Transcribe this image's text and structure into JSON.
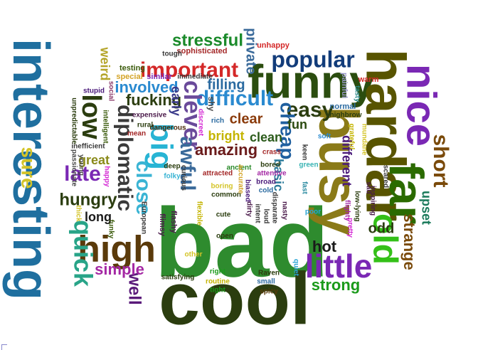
{
  "words": [
    {
      "text": "bad",
      "color": "#2e8b2e"
    },
    {
      "text": "cool",
      "color": "#2b3d0f"
    },
    {
      "text": "interesting",
      "color": "#1f6f9f"
    },
    {
      "text": "funny",
      "color": "#2b4d0f"
    },
    {
      "text": "hardar",
      "color": "#585400"
    },
    {
      "text": "far",
      "color": "#2b6b00"
    },
    {
      "text": "busy",
      "color": "#8a7a18"
    },
    {
      "text": "nice",
      "color": "#7a28b4"
    },
    {
      "text": "high",
      "color": "#5a3a0a"
    },
    {
      "text": "little",
      "color": "#7a28b4"
    },
    {
      "text": "old",
      "color": "#34c018"
    },
    {
      "text": "big",
      "color": "#28b4d4"
    },
    {
      "text": "popular",
      "color": "#123c7a"
    },
    {
      "text": "important",
      "color": "#d42828"
    },
    {
      "text": "difficult",
      "color": "#2a8ad0"
    },
    {
      "text": "easy",
      "color": "#2b3d0f"
    },
    {
      "text": "clever",
      "color": "#6a4a9a"
    },
    {
      "text": "stressful",
      "color": "#1a8a2a"
    },
    {
      "text": "short",
      "color": "#7a4a0a"
    },
    {
      "text": "low",
      "color": "#2b3d0f"
    },
    {
      "text": "quick",
      "color": "#28a488"
    },
    {
      "text": "sure",
      "color": "#d4c428"
    },
    {
      "text": "close",
      "color": "#3ab4d4"
    },
    {
      "text": "awful",
      "color": "#3a6a9a"
    },
    {
      "text": "diplomatic",
      "color": "#3a3a3a"
    },
    {
      "text": "late",
      "color": "#7a28b4"
    },
    {
      "text": "hungry",
      "color": "#2b3d0f"
    },
    {
      "text": "cheap",
      "color": "#1f5f9f"
    },
    {
      "text": "strange",
      "color": "#7a4a0a"
    },
    {
      "text": "upset",
      "color": "#1a7a5a"
    },
    {
      "text": "amazing",
      "color": "#6a1a1a"
    },
    {
      "text": "fucking",
      "color": "#2b3d0f"
    },
    {
      "text": "involved",
      "color": "#2a8ad0"
    },
    {
      "text": "well",
      "color": "#5a1a7a"
    },
    {
      "text": "simple",
      "color": "#a428a4"
    },
    {
      "text": "strong",
      "color": "#1a9a1a"
    },
    {
      "text": "hot",
      "color": "#1a1a1a"
    },
    {
      "text": "odd",
      "color": "#2b3d0f"
    },
    {
      "text": "private",
      "color": "#3a6a9a"
    },
    {
      "text": "weird",
      "color": "#b4a428"
    },
    {
      "text": "filling",
      "color": "#2a6aa0"
    },
    {
      "text": "clear",
      "color": "#8a3a0a"
    },
    {
      "text": "bright",
      "color": "#c4b400"
    },
    {
      "text": "fun",
      "color": "#2a4a0f"
    },
    {
      "text": "clean",
      "color": "#2a5a1a"
    },
    {
      "text": "great",
      "color": "#8a8a1a"
    },
    {
      "text": "long",
      "color": "#1a1a1a"
    },
    {
      "text": "basic",
      "color": "#2a7a9a"
    },
    {
      "text": "different",
      "color": "#4a1a7a"
    },
    {
      "text": "early",
      "color": "#3a3a8a"
    },
    {
      "text": "shy",
      "color": "#4a4a4a"
    },
    {
      "text": "unhappy",
      "color": "#d42828"
    },
    {
      "text": "sophisticated",
      "color": "#a42828"
    },
    {
      "text": "tough",
      "color": "#3a3a3a"
    },
    {
      "text": "testing",
      "color": "#3a5a0a"
    },
    {
      "text": "special",
      "color": "#d4a428"
    },
    {
      "text": "similar",
      "color": "#7a28b4"
    },
    {
      "text": "immediate",
      "color": "#3a3a3a"
    },
    {
      "text": "painful",
      "color": "#9a9aca"
    },
    {
      "text": "warm",
      "color": "#d42828"
    },
    {
      "text": "tasty",
      "color": "#2a8a8a"
    },
    {
      "text": "normal",
      "color": "#2a6aa0"
    },
    {
      "text": "highbrow",
      "color": "#2b3d0f"
    },
    {
      "text": "grateful",
      "color": "#c4b400"
    },
    {
      "text": "mundane",
      "color": "#d4c428"
    },
    {
      "text": "expensive",
      "color": "#4a1a4a"
    },
    {
      "text": "mean",
      "color": "#a42828"
    },
    {
      "text": "dangerous",
      "color": "#4a2a0a"
    },
    {
      "text": "rural",
      "color": "#2b3d0f"
    },
    {
      "text": "deep",
      "color": "#2b3d0f"
    },
    {
      "text": "folky",
      "color": "#3ab4d4"
    },
    {
      "text": "stupid",
      "color": "#4a1a7a"
    },
    {
      "text": "social",
      "color": "#8a3a6a"
    },
    {
      "text": "unpredictable",
      "color": "#2b3d0f"
    },
    {
      "text": "intelligent",
      "color": "#3a5a0a"
    },
    {
      "text": "passionate",
      "color": "#4a4a4a"
    },
    {
      "text": "young",
      "color": "#4a4a4a"
    },
    {
      "text": "inefficient",
      "color": "#3a3a3a"
    },
    {
      "text": "happy",
      "color": "#d428d4"
    },
    {
      "text": "thick",
      "color": "#d4c428"
    },
    {
      "text": "funky",
      "color": "#3a5a0a"
    },
    {
      "text": "European",
      "color": "#3a3a3a"
    },
    {
      "text": "flimsy",
      "color": "#4a1a4a"
    },
    {
      "text": "flashy",
      "color": "#4a1a4a"
    },
    {
      "text": "discreet",
      "color": "#d428d4"
    },
    {
      "text": "rich",
      "color": "#2a6aa0"
    },
    {
      "text": "boring",
      "color": "#d4c428"
    },
    {
      "text": "attracted",
      "color": "#a42828"
    },
    {
      "text": "common",
      "color": "#2b3d0f"
    },
    {
      "text": "curious",
      "color": "#3a3a3a"
    },
    {
      "text": "ancient",
      "color": "#2a8a2a"
    },
    {
      "text": "accurate",
      "color": "#d4a428"
    },
    {
      "text": "biased",
      "color": "#4a1a7a"
    },
    {
      "text": "bored",
      "color": "#2b3d0f"
    },
    {
      "text": "attentive",
      "color": "#a428a4"
    },
    {
      "text": "crass",
      "color": "#a42828"
    },
    {
      "text": "broad",
      "color": "#4a1a7a"
    },
    {
      "text": "cold",
      "color": "#2a6aa0"
    },
    {
      "text": "keen",
      "color": "#3a3a3a"
    },
    {
      "text": "fast",
      "color": "#2a8aa0"
    },
    {
      "text": "green",
      "color": "#3ab4b4"
    },
    {
      "text": "soft",
      "color": "#2a8ad0"
    },
    {
      "text": "scared",
      "color": "#3a3a3a"
    },
    {
      "text": "sad",
      "color": "#4a1a4a"
    },
    {
      "text": "inspiring",
      "color": "#4a1a4a"
    },
    {
      "text": "low-lying",
      "color": "#2b3d0f"
    },
    {
      "text": "flighty",
      "color": "#a428a4"
    },
    {
      "text": "pretty",
      "color": "#d428d4"
    },
    {
      "text": "poor",
      "color": "#28a4d4"
    },
    {
      "text": "nasty",
      "color": "#4a1a4a"
    },
    {
      "text": "disparate",
      "color": "#3a3a3a"
    },
    {
      "text": "loud",
      "color": "#3a3a3a"
    },
    {
      "text": "intent",
      "color": "#3a3a3a"
    },
    {
      "text": "dirty",
      "color": "#4a1a4a"
    },
    {
      "text": "flexible",
      "color": "#c4b400"
    },
    {
      "text": "cute",
      "color": "#2b3d0f"
    },
    {
      "text": "open",
      "color": "#2b3d0f"
    },
    {
      "text": "other",
      "color": "#d4c428"
    },
    {
      "text": "satisfying",
      "color": "#2b3d0f"
    },
    {
      "text": "right",
      "color": "#1a9a1a"
    },
    {
      "text": "routine",
      "color": "#c4b400"
    },
    {
      "text": "tight",
      "color": "#1a9a1a"
    },
    {
      "text": "Raven",
      "color": "#2b3d0f"
    },
    {
      "text": "small",
      "color": "#2a6aa0"
    },
    {
      "text": "spicy",
      "color": "#5a3a0a"
    },
    {
      "text": "quiet",
      "color": "#28a4d4"
    }
  ]
}
